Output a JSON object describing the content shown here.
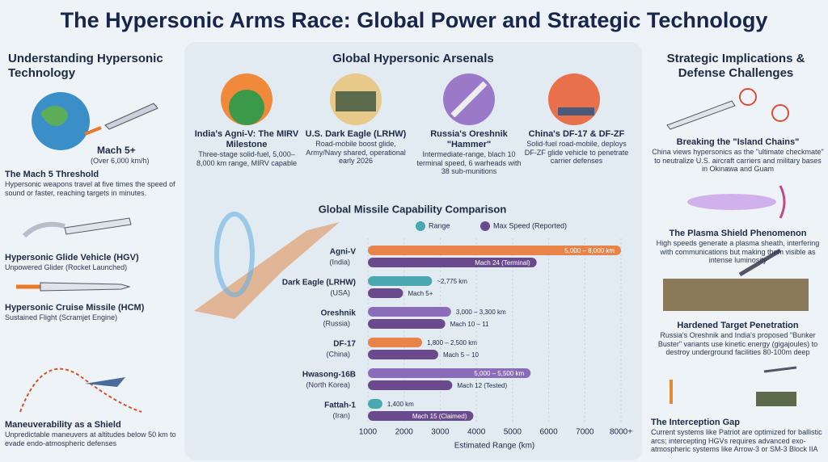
{
  "header": {
    "title": "The Hypersonic Arms Race: Global Power and Strategic Technology"
  },
  "left": {
    "title": "Understanding Hypersonic Technology",
    "mach_label": "Mach 5+",
    "mach_sub": "(Over 6,000 km/h)",
    "items": [
      {
        "heading": "The Mach 5 Threshold",
        "text": "Hypersonic weapons travel at five times the speed of sound or faster, reaching targets in minutes."
      },
      {
        "heading": "Hypersonic Glide Vehicle (HGV)",
        "text": "Unpowered Glider (Rocket Launched)"
      },
      {
        "heading": "Hypersonic Cruise Missile (HCM)",
        "text": "Sustained Flight (Scramjet Engine)"
      },
      {
        "heading": "Maneuverability as a Shield",
        "text": "Unpredictable maneuvers at altitudes below 50 km to evade endo-atmospheric defenses"
      }
    ]
  },
  "arsenals": {
    "title": "Global Hypersonic Arsenals",
    "cards": [
      {
        "heading": "India's Agni-V: The MIRV Milestone",
        "text": "Three-stage solid-fuel, 5,000–8,000 km range, MIRV capable"
      },
      {
        "heading": "U.S. Dark Eagle (LRHW)",
        "text": "Road-mobile boost glide, Army/Navy shared, operational early 2026"
      },
      {
        "heading": "Russia's Oreshnik \"Hammer\"",
        "text": "Intermediate-range, blach 10 terminal speed, 6 warheads with 38 sub-munitions"
      },
      {
        "heading": "China's DF-17 & DF-ZF",
        "text": "Solid-fuel road-mobile, deploys DF-ZF glide vehicle to penetrate carrier defenses"
      }
    ]
  },
  "right": {
    "title": "Strategic Implications & Defense Challenges",
    "items": [
      {
        "heading": "Breaking the \"Island Chains\"",
        "text": "China views hypersonics as the \"ultimate checkmate\" to neutralize U.S. aircraft carriers and military bases in Okinawa and Guam"
      },
      {
        "heading": "The Plasma Shield Phenomenon",
        "text": "High speeds generate a plasma sheath, interfering with communications but making them visible as intense luminosity"
      },
      {
        "heading": "Hardened Target Penetration",
        "text": "Russia's Oreshnik and India's proposed \"Bunker Buster\" variants use kinetic energy (gigajoules) to destroy underground facilities 80-100m deep"
      },
      {
        "heading": "The Interception Gap",
        "text": "Current systems like Patriot are optimized for ballistic arcs; intercepting HGVs requires advanced exo-atmospheric systems like Arrow-3 or SM-3 Block IIA"
      }
    ]
  },
  "chart_data": {
    "type": "bar",
    "orientation": "horizontal",
    "title": "Global Missile Capability Comparison",
    "x_label": "Estimated Range (km)",
    "categories": [
      "Agni-V",
      "Dark Eagle (LRHW)",
      "Oreshnik",
      "DF-17",
      "Hwasong-16B",
      "Fattah-1"
    ],
    "category_notes": [
      "(India)",
      "(USA)",
      "(Russia)",
      "(China)",
      "(North Korea)",
      "(Iran)"
    ],
    "series": [
      {
        "name": "Range",
        "color": "#4aa8b0",
        "colors": [
          "#e8844a",
          "#4aa8b0",
          "#8b6cb8",
          "#e8844a",
          "#8b6cb8",
          "#4aa8b0"
        ],
        "values": [
          8000,
          2775,
          3300,
          2500,
          5500,
          1400
        ],
        "value_labels": [
          "5,000 – 8,000 km",
          "~2,775 km",
          "3,000 – 3,300 km",
          "1,800 – 2,500 km",
          "5,000 – 5,500 km",
          "1,400 km"
        ]
      },
      {
        "name": "Max Speed (Reported)",
        "color": "#6a4a8c",
        "axis": "x2",
        "values": [
          24,
          5,
          11,
          10,
          12,
          15
        ],
        "value_labels": [
          "Mach 24 (Terminal)",
          "Mach 5+",
          "Mach 10 – 11",
          "Mach 5 – 10",
          "Mach 12 (Tested)",
          "Mach 15 (Claimed)"
        ]
      }
    ],
    "xlim": [
      1000,
      8000
    ],
    "x2lim": [
      0,
      36
    ],
    "xticks": [
      1000,
      2000,
      3000,
      4000,
      5000,
      6000,
      7000,
      {
        "value": 8000,
        "label": "8000+"
      }
    ]
  }
}
